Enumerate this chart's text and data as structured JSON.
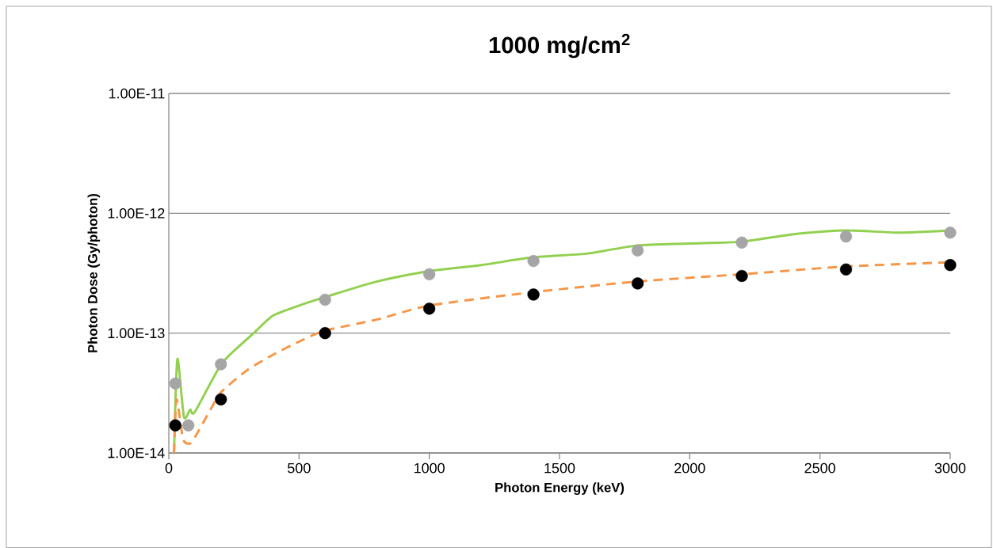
{
  "chart_data": {
    "type": "line",
    "title": "1000 mg/cm$^{2}$",
    "xlabel": "Photon Energy (keV)",
    "ylabel": "Photon Dose (Gy/photon)",
    "log": "y",
    "grid": "y",
    "xlim": [
      0,
      3000
    ],
    "xticks": [
      0,
      500,
      1000,
      1500,
      2000,
      2500,
      3000
    ],
    "ylim": [
      1e-14,
      1e-11
    ],
    "yticks": [
      {
        "value": 1e-14,
        "label": "1.00E-14"
      },
      {
        "value": 1e-13,
        "label": "1.00E-13"
      },
      {
        "value": 1e-12,
        "label": "1.00E-12"
      },
      {
        "value": 1e-11,
        "label": "1.00E-11"
      }
    ],
    "series": [
      {
        "color": "#92d050",
        "line_style": "solid",
        "marker": "none",
        "x": [
          20,
          33,
          58,
          82,
          100,
          204,
          326,
          400,
          500,
          600,
          800,
          1000,
          1200,
          1400,
          1600,
          1800,
          2000,
          2200,
          2400,
          2600,
          2800,
          3000
        ],
        "values": [
          1e-14,
          6.1e-14,
          2e-14,
          2.3e-14,
          2.2e-14,
          5.6e-14,
          1e-13,
          1.4e-13,
          1.7e-13,
          2e-13,
          2.7e-13,
          3.3e-13,
          3.7e-13,
          4.3e-13,
          4.6e-13,
          5.4e-13,
          5.6e-13,
          5.8e-13,
          6.7e-13,
          7.2e-13,
          6.9e-13,
          7.2e-13
        ]
      },
      {
        "color": "#f79646",
        "line_style": "dashed",
        "marker": "none",
        "x": [
          20,
          30,
          55,
          82,
          100,
          150,
          200,
          300,
          400,
          500,
          600,
          800,
          1000,
          1400,
          1800,
          2200,
          2600,
          3000
        ],
        "values": [
          1e-14,
          2.8e-14,
          1.3e-14,
          1.2e-14,
          1.35e-14,
          2.1e-14,
          3.2e-14,
          4.9e-14,
          6.6e-14,
          8.5e-14,
          1.05e-13,
          1.3e-13,
          1.7e-13,
          2.2e-13,
          2.7e-13,
          3.1e-13,
          3.6e-13,
          3.9e-13
        ]
      },
      {
        "type": "scatter",
        "color": "#a5a5a5",
        "marker": "circle",
        "x": [
          25,
          75,
          200,
          600,
          1000,
          1400,
          1800,
          2200,
          2600,
          3000
        ],
        "values": [
          3.8e-14,
          1.7e-14,
          5.5e-14,
          1.9e-13,
          3.1e-13,
          4e-13,
          4.9e-13,
          5.7e-13,
          6.4e-13,
          6.9e-13
        ]
      },
      {
        "type": "scatter",
        "color": "#000000",
        "marker": "circle",
        "x": [
          25,
          200,
          600,
          1000,
          1400,
          1800,
          2200,
          2600,
          3000
        ],
        "values": [
          1.7e-14,
          2.8e-14,
          1e-13,
          1.6e-13,
          2.1e-13,
          2.6e-13,
          3e-13,
          3.4e-13,
          3.7e-13
        ]
      }
    ]
  }
}
